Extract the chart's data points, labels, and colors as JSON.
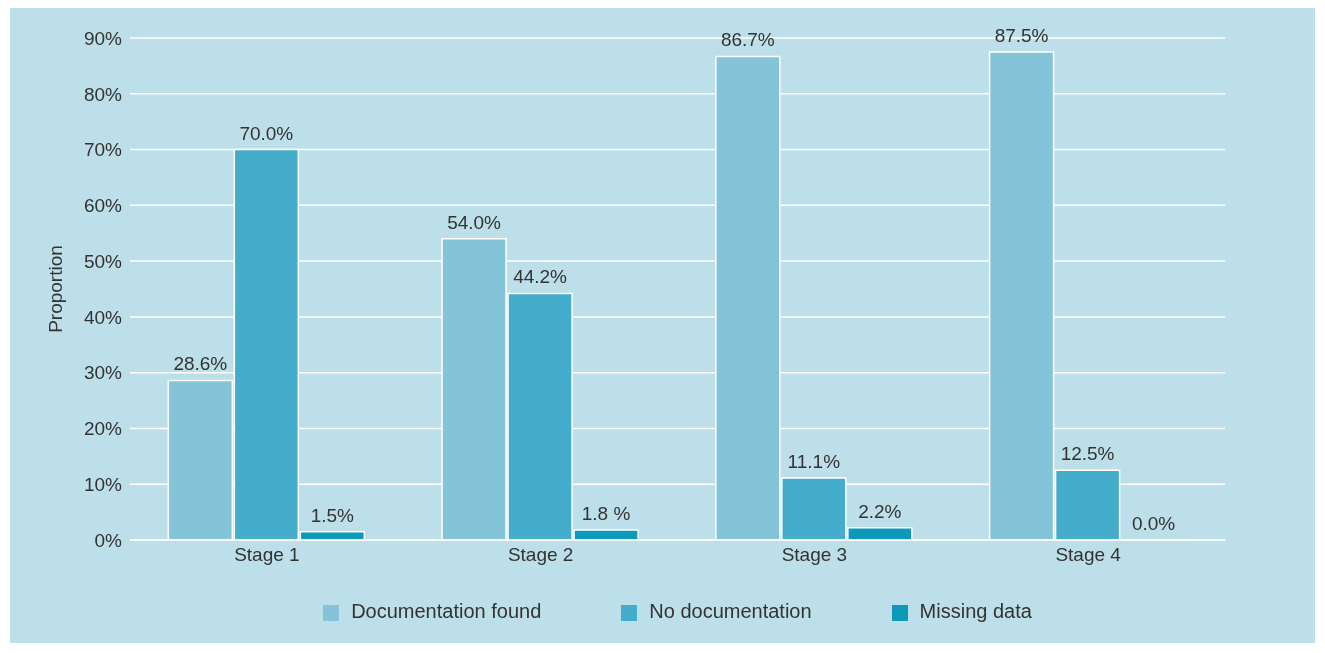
{
  "chart_data": {
    "type": "bar",
    "ylabel": "Proportion",
    "categories": [
      "Stage 1",
      "Stage 2",
      "Stage 3",
      "Stage 4"
    ],
    "series": [
      {
        "name": "Documentation found",
        "color": "#84c4d9",
        "values": [
          28.6,
          54.0,
          86.7,
          87.5
        ],
        "value_labels": [
          "28.6%",
          "54.0%",
          "86.7%",
          "87.5%"
        ]
      },
      {
        "name": "No documentation",
        "color": "#43adcb",
        "values": [
          70.0,
          44.2,
          11.1,
          12.5
        ],
        "value_labels": [
          "70.0%",
          "44.2%",
          "11.1%",
          "12.5%"
        ]
      },
      {
        "name": "Missing data",
        "color": "#0b9ab9",
        "values": [
          1.5,
          1.8,
          2.2,
          0.0
        ],
        "value_labels": [
          "1.5%",
          "1.8 %",
          "2.2%",
          "0.0%"
        ]
      }
    ],
    "ylim": [
      0,
      90
    ],
    "yticks": [
      {
        "value": 0,
        "label": "0%"
      },
      {
        "value": 10,
        "label": "10%"
      },
      {
        "value": 20,
        "label": "20%"
      },
      {
        "value": 30,
        "label": "30%"
      },
      {
        "value": 40,
        "label": "40%"
      },
      {
        "value": 50,
        "label": "50%"
      },
      {
        "value": 60,
        "label": "60%"
      },
      {
        "value": 70,
        "label": "70%"
      },
      {
        "value": 80,
        "label": "80%"
      },
      {
        "value": 90,
        "label": "90%"
      }
    ],
    "grid": "y",
    "legend": "bottom"
  }
}
